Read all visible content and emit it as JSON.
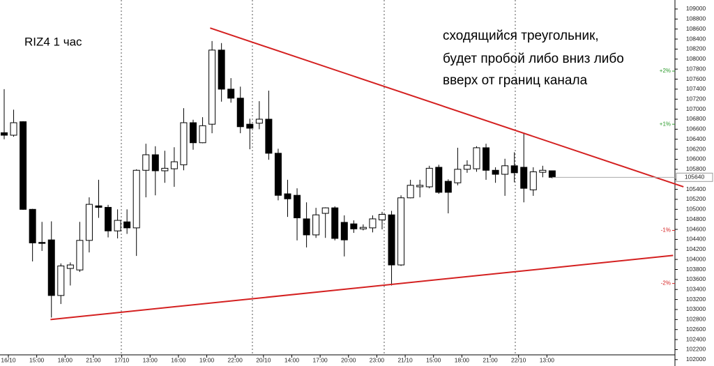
{
  "chart_data": {
    "type": "candlestick",
    "title": "RIZ4  1 час",
    "annotation": [
      "сходящийся треугольник,",
      "будет пробой либо вниз либо",
      "вверх от границ канала"
    ],
    "categories": [
      "16/10",
      null,
      null,
      "15:00",
      null,
      null,
      "18:00",
      null,
      null,
      "21:00",
      null,
      null,
      "17/10",
      null,
      null,
      "13:00",
      null,
      null,
      "16:00",
      null,
      null,
      "19:00",
      null,
      null,
      "22:00",
      null,
      null,
      "20/10",
      null,
      null,
      "14:00",
      null,
      null,
      "17:00",
      null,
      null,
      "20:00",
      null,
      null,
      "23:00",
      null,
      null,
      "21/10",
      null,
      null,
      "15:00",
      null,
      null,
      "18:00",
      null,
      null,
      "21:00",
      null,
      null,
      "22/10",
      null,
      null,
      "13:00",
      null
    ],
    "open": [
      106530,
      106480,
      106750,
      105000,
      104340,
      104390,
      103280,
      103820,
      103790,
      104380,
      105070,
      105040,
      104570,
      104750,
      104630,
      105780,
      106090,
      105770,
      105810,
      105890,
      106730,
      106330,
      106700,
      108180,
      107400,
      107220,
      106700,
      106720,
      106800,
      106120,
      105310,
      105280,
      104810,
      104490,
      104920,
      105030,
      104740,
      104710,
      104610,
      104630,
      104790,
      104890,
      103890,
      105230,
      105450,
      105450,
      105840,
      105560,
      105530,
      105800,
      105810,
      106230,
      105780,
      105700,
      105870,
      105840,
      105390,
      105740,
      105770
    ],
    "high": [
      107400,
      106990,
      106760,
      105010,
      104750,
      104760,
      103920,
      103940,
      104750,
      105240,
      105590,
      105090,
      105000,
      105000,
      105800,
      106310,
      106260,
      106170,
      106240,
      107020,
      106790,
      106840,
      108360,
      108320,
      107620,
      107450,
      106810,
      107160,
      107370,
      106210,
      105590,
      105420,
      105140,
      105030,
      105040,
      105060,
      104880,
      104780,
      104700,
      104880,
      104950,
      104970,
      105280,
      105590,
      105590,
      105870,
      105890,
      105600,
      106230,
      105980,
      106260,
      106310,
      105840,
      106010,
      106140,
      106530,
      105840,
      105870,
      105770
    ],
    "low": [
      106400,
      106450,
      104990,
      103960,
      104170,
      102840,
      103110,
      103480,
      103750,
      104140,
      104830,
      104440,
      104420,
      104510,
      104070,
      105240,
      105280,
      105530,
      105450,
      105780,
      106190,
      106320,
      106520,
      107150,
      107130,
      106520,
      106200,
      106600,
      105990,
      105180,
      104850,
      104380,
      104240,
      104430,
      104430,
      104380,
      104060,
      104530,
      104580,
      104540,
      104600,
      103480,
      103870,
      105220,
      105240,
      105420,
      105310,
      104920,
      105480,
      105730,
      105750,
      105590,
      105530,
      105270,
      105540,
      105140,
      105270,
      105640,
      105620
    ],
    "close": [
      106480,
      106730,
      105000,
      104330,
      104320,
      103280,
      103870,
      103890,
      104380,
      105100,
      105040,
      104570,
      104780,
      104630,
      105780,
      106090,
      105770,
      105820,
      105950,
      106730,
      106330,
      106670,
      108180,
      107400,
      107220,
      106650,
      106620,
      106800,
      106120,
      105280,
      105210,
      104830,
      104490,
      104890,
      105030,
      104420,
      104390,
      104610,
      104640,
      104810,
      104900,
      103890,
      105230,
      105480,
      105480,
      105820,
      105340,
      105340,
      105800,
      105880,
      106230,
      105780,
      105700,
      105870,
      105730,
      105420,
      105750,
      105780,
      105640
    ],
    "ylim": [
      101900,
      109180
    ],
    "yticks": [
      102000,
      102200,
      102400,
      102600,
      102800,
      103000,
      103200,
      103400,
      103600,
      103800,
      104000,
      104200,
      104400,
      104600,
      104800,
      105000,
      105200,
      105400,
      105600,
      105800,
      106000,
      106200,
      106400,
      106600,
      106800,
      107000,
      107200,
      107400,
      107600,
      107800,
      108000,
      108200,
      108400,
      108600,
      108800,
      109000
    ],
    "trendline_color": "#d42020",
    "trendlines": [
      {
        "x": [
          21.8,
          71.9
        ],
        "y": [
          108620,
          105450
        ]
      },
      {
        "x": [
          4.9,
          70.8
        ],
        "y": [
          102800,
          104080
        ]
      }
    ],
    "last_price": 105640,
    "percent_marks": [
      {
        "label": "+2%",
        "value": 107760,
        "color": "#2a9a2a"
      },
      {
        "label": "+1%",
        "value": 106700,
        "color": "#2a9a2a"
      },
      {
        "label": "-1%",
        "value": 104580,
        "color": "#d42020"
      },
      {
        "label": "-2%",
        "value": 103520,
        "color": "#d42020"
      }
    ]
  }
}
